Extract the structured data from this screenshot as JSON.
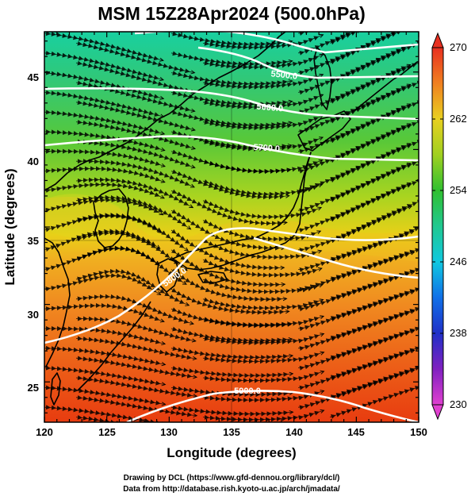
{
  "title": "MSM 15Z28Apr2024 (500.0hPa)",
  "x_axis": {
    "label": "Longitude (degrees)",
    "range": [
      120,
      150
    ],
    "ticks": [
      "120",
      "125",
      "130",
      "135",
      "140",
      "145",
      "150"
    ]
  },
  "y_axis": {
    "label": "Latitude  (degrees)",
    "range": [
      22.4,
      47.6
    ],
    "ticks": [
      "25",
      "30",
      "35",
      "40",
      "45"
    ]
  },
  "colorbar": {
    "range": [
      230,
      270
    ],
    "ticks": [
      "230",
      "238",
      "246",
      "254",
      "262",
      "270"
    ],
    "colors": {
      "230": "#e040d0",
      "238": "#2030c8",
      "246": "#10c8e0",
      "254": "#30c030",
      "262": "#d8d820",
      "270": "#e83020"
    }
  },
  "contours": [
    {
      "label": "5500.0"
    },
    {
      "label": "5600.0"
    },
    {
      "label": "5700.0"
    },
    {
      "label": "5800.0"
    },
    {
      "label": "5900.0"
    }
  ],
  "credits": {
    "line1": "Drawing by DCL (https://www.gfd-dennou.org/library/dcl/)",
    "line2": "Data from http://database.rish.kyoto-u.ac.jp/arch/jmadata/"
  },
  "colors": {
    "frame": "#000000",
    "contour": "#ffffff",
    "streamline": "#000000"
  }
}
